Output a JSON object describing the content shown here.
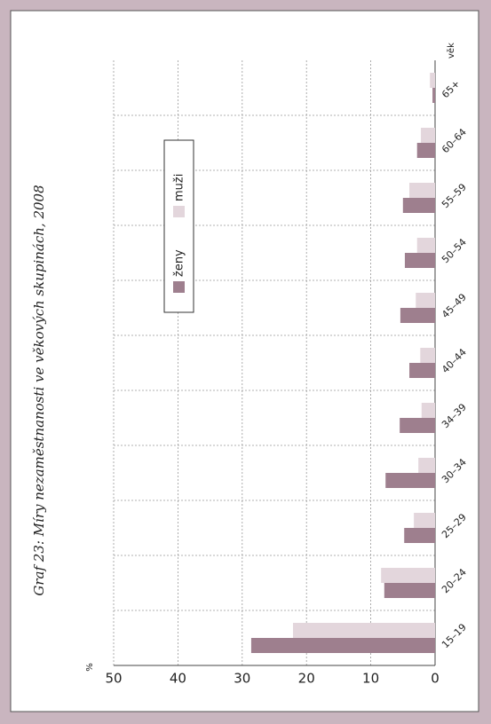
{
  "chart_data": {
    "type": "bar",
    "title": "Graf 23: Míry nezaměstnanosti ve věkových skupinách, 2008",
    "y_label": "%",
    "x_label": "věk",
    "categories": [
      "15–19",
      "20–24",
      "25–29",
      "30–34",
      "34–39",
      "40–44",
      "45–49",
      "50–54",
      "55–59",
      "60–64",
      "65+"
    ],
    "series": [
      {
        "name": "ženy",
        "color": "#9e7f8e",
        "values": [
          28.6,
          7.9,
          4.8,
          7.7,
          5.5,
          4.0,
          5.4,
          4.7,
          5.0,
          2.8,
          0.4
        ]
      },
      {
        "name": "muži",
        "color": "#e3d6dc",
        "values": [
          22.1,
          8.4,
          3.3,
          2.6,
          2.1,
          2.3,
          3.0,
          2.8,
          4.0,
          2.2,
          0.8
        ]
      }
    ],
    "ylim": [
      0,
      50
    ],
    "yticks": [
      0,
      10,
      20,
      30,
      40,
      50
    ],
    "grid": true
  }
}
